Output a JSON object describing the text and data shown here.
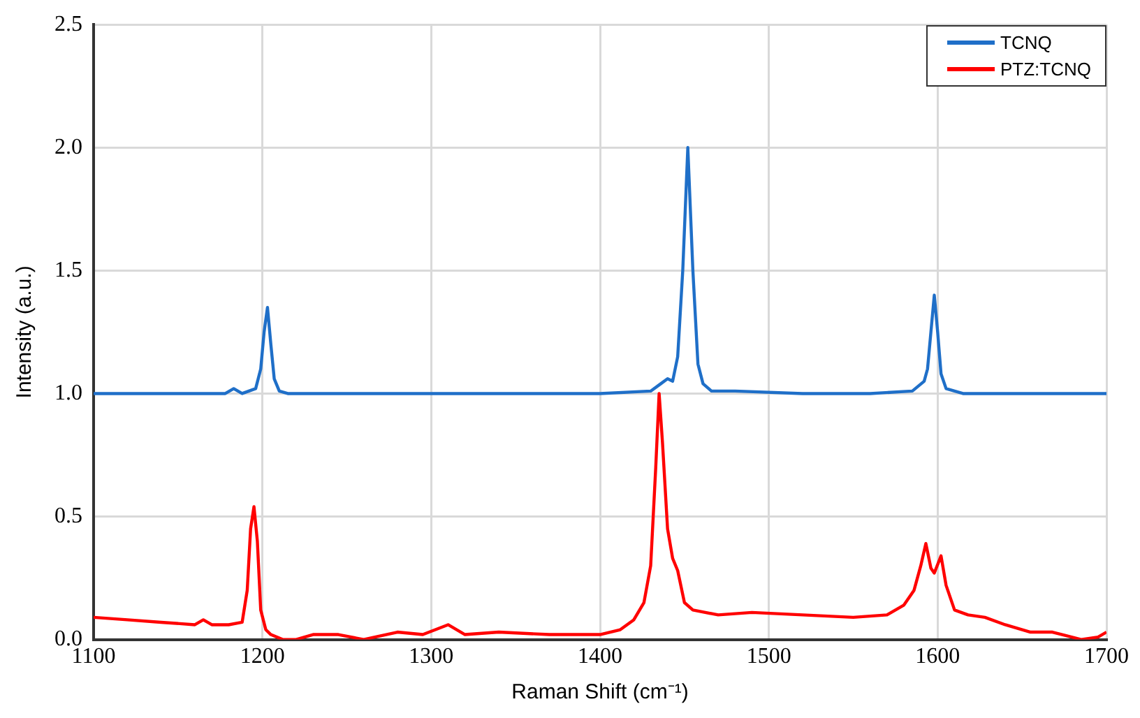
{
  "chart_data": {
    "type": "line",
    "xlabel": "Raman Shift (cm⁻¹)",
    "ylabel": "Intensity (a.u.)",
    "xlim": [
      1100,
      1700
    ],
    "ylim": [
      0,
      2.5
    ],
    "xticks": [
      1100,
      1200,
      1300,
      1400,
      1500,
      1600,
      1700
    ],
    "yticks": [
      {
        "value": 0,
        "label": "0.0"
      },
      {
        "value": 0.5,
        "label": "0.5"
      },
      {
        "value": 1,
        "label": "1.0"
      },
      {
        "value": 1.5,
        "label": "1.5"
      },
      {
        "value": 2,
        "label": "2.0"
      },
      {
        "value": 2.5,
        "label": "2.5"
      }
    ],
    "grid": true,
    "legend": "top right",
    "marker": "none",
    "line_style": "solid",
    "series": [
      {
        "name": "TCNQ",
        "color": "#1f6fc8",
        "x": [
          1100,
          1150,
          1178,
          1183,
          1188,
          1196,
          1199,
          1201,
          1203,
          1205,
          1207,
          1210,
          1215,
          1250,
          1300,
          1350,
          1400,
          1430,
          1436,
          1440,
          1443,
          1446,
          1449,
          1452,
          1455,
          1458,
          1461,
          1466,
          1480,
          1520,
          1560,
          1585,
          1592,
          1594,
          1596,
          1598,
          1600,
          1602,
          1605,
          1615,
          1650,
          1700
        ],
        "values": [
          1.0,
          1.0,
          1.0,
          1.02,
          1.0,
          1.02,
          1.1,
          1.25,
          1.35,
          1.2,
          1.06,
          1.01,
          1.0,
          1.0,
          1.0,
          1.0,
          1.0,
          1.01,
          1.04,
          1.06,
          1.05,
          1.15,
          1.5,
          2.0,
          1.5,
          1.12,
          1.04,
          1.01,
          1.01,
          1.0,
          1.0,
          1.01,
          1.05,
          1.1,
          1.25,
          1.4,
          1.25,
          1.08,
          1.02,
          1.0,
          1.0,
          1.0
        ]
      },
      {
        "name": "PTZ:TCNQ",
        "color": "#ff0000",
        "x": [
          1100,
          1120,
          1140,
          1160,
          1165,
          1170,
          1180,
          1188,
          1191,
          1193,
          1195,
          1197,
          1199,
          1202,
          1205,
          1212,
          1220,
          1230,
          1245,
          1260,
          1280,
          1295,
          1310,
          1320,
          1340,
          1370,
          1400,
          1412,
          1420,
          1426,
          1430,
          1433,
          1435,
          1437,
          1440,
          1443,
          1446,
          1450,
          1455,
          1470,
          1490,
          1520,
          1550,
          1570,
          1580,
          1586,
          1590,
          1593,
          1596,
          1598,
          1602,
          1605,
          1610,
          1618,
          1628,
          1640,
          1655,
          1668,
          1685,
          1695,
          1700
        ],
        "values": [
          0.09,
          0.08,
          0.07,
          0.06,
          0.08,
          0.06,
          0.06,
          0.07,
          0.2,
          0.45,
          0.54,
          0.4,
          0.12,
          0.04,
          0.02,
          0.0,
          0.0,
          0.02,
          0.02,
          0.0,
          0.03,
          0.02,
          0.06,
          0.02,
          0.03,
          0.02,
          0.02,
          0.04,
          0.08,
          0.15,
          0.3,
          0.7,
          1.0,
          0.8,
          0.45,
          0.33,
          0.28,
          0.15,
          0.12,
          0.1,
          0.11,
          0.1,
          0.09,
          0.1,
          0.14,
          0.2,
          0.3,
          0.39,
          0.29,
          0.27,
          0.34,
          0.22,
          0.12,
          0.1,
          0.09,
          0.06,
          0.03,
          0.03,
          0.0,
          0.01,
          0.03
        ]
      }
    ]
  }
}
